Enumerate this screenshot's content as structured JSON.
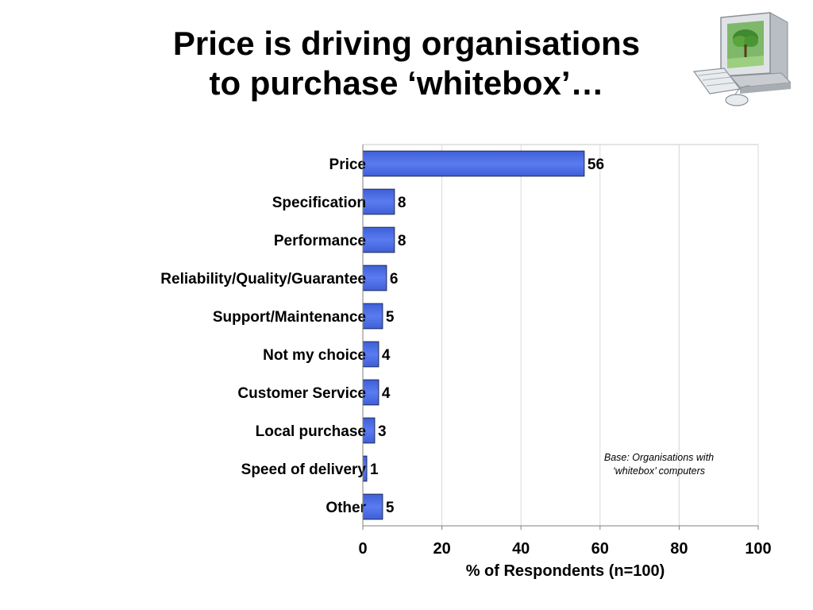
{
  "slide": {
    "title_line1": "Price is driving organisations",
    "title_line2": "to purchase ‘whitebox’…"
  },
  "illustration": {
    "icon": "desktop-computer-icon"
  },
  "chart_data": {
    "type": "bar",
    "orientation": "horizontal",
    "categories": [
      "Price",
      "Specification",
      "Performance",
      "Reliability/Quality/Guarantee",
      "Support/Maintenance",
      "Not my choice",
      "Customer Service",
      "Local purchase",
      "Speed of delivery",
      "Other"
    ],
    "values": [
      56,
      8,
      8,
      6,
      5,
      4,
      4,
      3,
      1,
      5
    ],
    "data_labels": [
      "56",
      "8",
      "8",
      "6",
      "5",
      "4",
      "4",
      "3",
      "1",
      "5"
    ],
    "xlabel": "% of Respondents (n=100)",
    "ylabel": "",
    "xlim": [
      0,
      100
    ],
    "ticks": [
      0,
      20,
      40,
      60,
      80,
      100
    ],
    "tick_labels": [
      "0",
      "20",
      "40",
      "60",
      "80",
      "100"
    ],
    "grid": "vertical",
    "bar_color": "#5b7bf0",
    "legend": "none"
  },
  "annotation": {
    "line1": "Base:  Organisations with",
    "line2": "‘whitebox’ computers"
  }
}
